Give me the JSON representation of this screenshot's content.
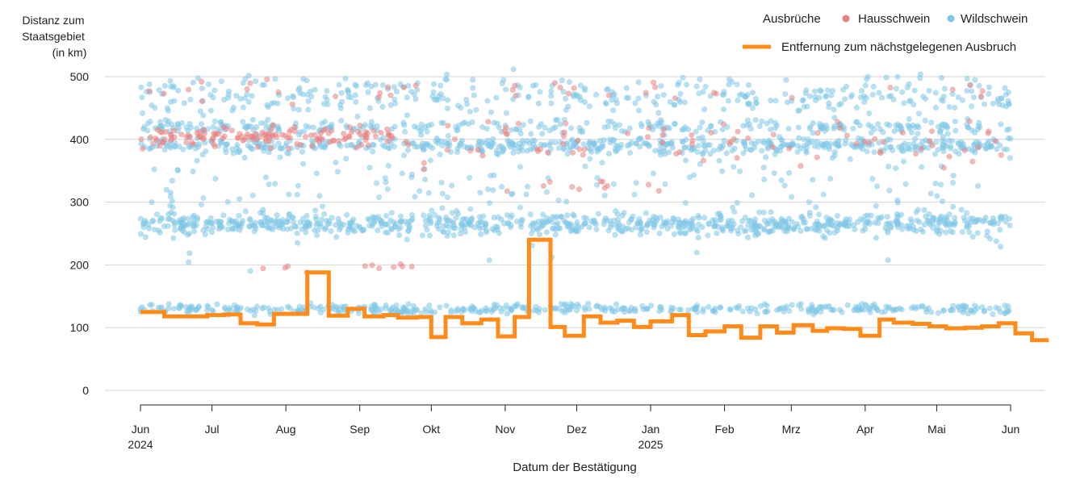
{
  "chart_data": {
    "type": "scatter",
    "title": "",
    "ylabel_lines": [
      "Distanz zum",
      "Staatsgebiet",
      "(in km)"
    ],
    "xlabel": "Datum der Bestätigung",
    "ylim": [
      0,
      520
    ],
    "y_ticks": [
      0,
      100,
      200,
      300,
      400,
      500
    ],
    "x_range": [
      "2024-06-01",
      "2025-06-01"
    ],
    "x_ticks": [
      {
        "date": "2024-06-01",
        "label": "Jun",
        "sub": "2024"
      },
      {
        "date": "2024-07-01",
        "label": "Jul",
        "sub": ""
      },
      {
        "date": "2024-08-01",
        "label": "Aug",
        "sub": ""
      },
      {
        "date": "2024-09-01",
        "label": "Sep",
        "sub": ""
      },
      {
        "date": "2024-10-01",
        "label": "Okt",
        "sub": ""
      },
      {
        "date": "2024-11-01",
        "label": "Nov",
        "sub": ""
      },
      {
        "date": "2024-12-01",
        "label": "Dez",
        "sub": ""
      },
      {
        "date": "2025-01-01",
        "label": "Jan",
        "sub": "2025"
      },
      {
        "date": "2025-02-01",
        "label": "Feb",
        "sub": ""
      },
      {
        "date": "2025-03-01",
        "label": "Mrz",
        "sub": ""
      },
      {
        "date": "2025-04-01",
        "label": "Apr",
        "sub": ""
      },
      {
        "date": "2025-05-01",
        "label": "Mai",
        "sub": ""
      },
      {
        "date": "2025-06-01",
        "label": "Jun",
        "sub": ""
      }
    ],
    "grid": true,
    "legend": {
      "title": "Ausbrüche",
      "placement": "top-right",
      "points": [
        {
          "name": "Hausschwein",
          "color": "#e88080"
        },
        {
          "name": "Wildschwein",
          "color": "#7fc6e6"
        }
      ],
      "line": {
        "name": "Entfernung zum nächstgelegenen Ausbruch",
        "color": "#ff8c1a"
      }
    },
    "scatter_series": [
      {
        "name": "Wildschwein",
        "color": "#7fc6e6",
        "clusters": [
          {
            "from": "2024-06-01",
            "to": "2025-06-01",
            "y_center": 265,
            "y_spread": 25,
            "per_day": 2.2
          },
          {
            "from": "2024-06-01",
            "to": "2025-06-01",
            "y_center": 130,
            "y_spread": 12,
            "per_day": 1.2
          },
          {
            "from": "2024-06-01",
            "to": "2025-06-01",
            "y_center": 390,
            "y_spread": 18,
            "per_day": 1.4
          },
          {
            "from": "2024-06-01",
            "to": "2025-06-01",
            "y_center": 420,
            "y_spread": 15,
            "per_day": 0.8
          },
          {
            "from": "2024-06-01",
            "to": "2025-06-01",
            "y_center": 470,
            "y_spread": 45,
            "per_day": 1.0
          },
          {
            "from": "2024-06-01",
            "to": "2025-06-01",
            "y_center": 320,
            "y_spread": 160,
            "per_day": 0.6
          }
        ]
      },
      {
        "name": "Hausschwein",
        "color": "#e88080",
        "clusters": [
          {
            "from": "2024-06-01",
            "to": "2024-09-15",
            "y_center": 405,
            "y_spread": 25,
            "per_day": 1.3
          },
          {
            "from": "2024-07-15",
            "to": "2024-09-25",
            "y_center": 195,
            "y_spread": 12,
            "per_day": 0.15
          },
          {
            "from": "2024-09-01",
            "to": "2025-06-01",
            "y_center": 390,
            "y_spread": 60,
            "per_day": 0.3
          },
          {
            "from": "2024-10-01",
            "to": "2025-01-15",
            "y_center": 325,
            "y_spread": 15,
            "per_day": 0.1
          },
          {
            "from": "2024-06-01",
            "to": "2025-06-01",
            "y_center": 480,
            "y_spread": 35,
            "per_day": 0.1
          }
        ]
      }
    ],
    "line_series": {
      "name": "Entfernung zum nächstgelegenen Ausbruch",
      "color": "#ff8c1a",
      "steps": [
        [
          "2024-06-01",
          125
        ],
        [
          "2024-06-11",
          118
        ],
        [
          "2024-06-29",
          120
        ],
        [
          "2024-07-06",
          121
        ],
        [
          "2024-07-13",
          107
        ],
        [
          "2024-07-20",
          105
        ],
        [
          "2024-07-27",
          122
        ],
        [
          "2024-08-10",
          188
        ],
        [
          "2024-08-19",
          119
        ],
        [
          "2024-08-27",
          130
        ],
        [
          "2024-09-03",
          118
        ],
        [
          "2024-09-11",
          120
        ],
        [
          "2024-09-17",
          116
        ],
        [
          "2024-09-25",
          117
        ],
        [
          "2024-10-01",
          85
        ],
        [
          "2024-10-07",
          117
        ],
        [
          "2024-10-14",
          107
        ],
        [
          "2024-10-22",
          113
        ],
        [
          "2024-10-29",
          86
        ],
        [
          "2024-11-05",
          117
        ],
        [
          "2024-11-11",
          240
        ],
        [
          "2024-11-20",
          101
        ],
        [
          "2024-11-26",
          87
        ],
        [
          "2024-12-04",
          118
        ],
        [
          "2024-12-11",
          108
        ],
        [
          "2024-12-18",
          111
        ],
        [
          "2024-12-25",
          101
        ],
        [
          "2025-01-01",
          110
        ],
        [
          "2025-01-10",
          120
        ],
        [
          "2025-01-17",
          88
        ],
        [
          "2025-01-24",
          94
        ],
        [
          "2025-02-01",
          102
        ],
        [
          "2025-02-08",
          84
        ],
        [
          "2025-02-16",
          102
        ],
        [
          "2025-02-23",
          92
        ],
        [
          "2025-03-02",
          104
        ],
        [
          "2025-03-10",
          95
        ],
        [
          "2025-03-16",
          99
        ],
        [
          "2025-03-23",
          98
        ],
        [
          "2025-03-30",
          87
        ],
        [
          "2025-04-07",
          113
        ],
        [
          "2025-04-13",
          108
        ],
        [
          "2025-04-21",
          106
        ],
        [
          "2025-04-28",
          102
        ],
        [
          "2025-05-05",
          99
        ],
        [
          "2025-05-13",
          100
        ],
        [
          "2025-05-20",
          102
        ],
        [
          "2025-05-27",
          107
        ],
        [
          "2025-06-03",
          91
        ],
        [
          "2025-06-10",
          80
        ],
        [
          "2025-06-17",
          80
        ]
      ]
    }
  }
}
